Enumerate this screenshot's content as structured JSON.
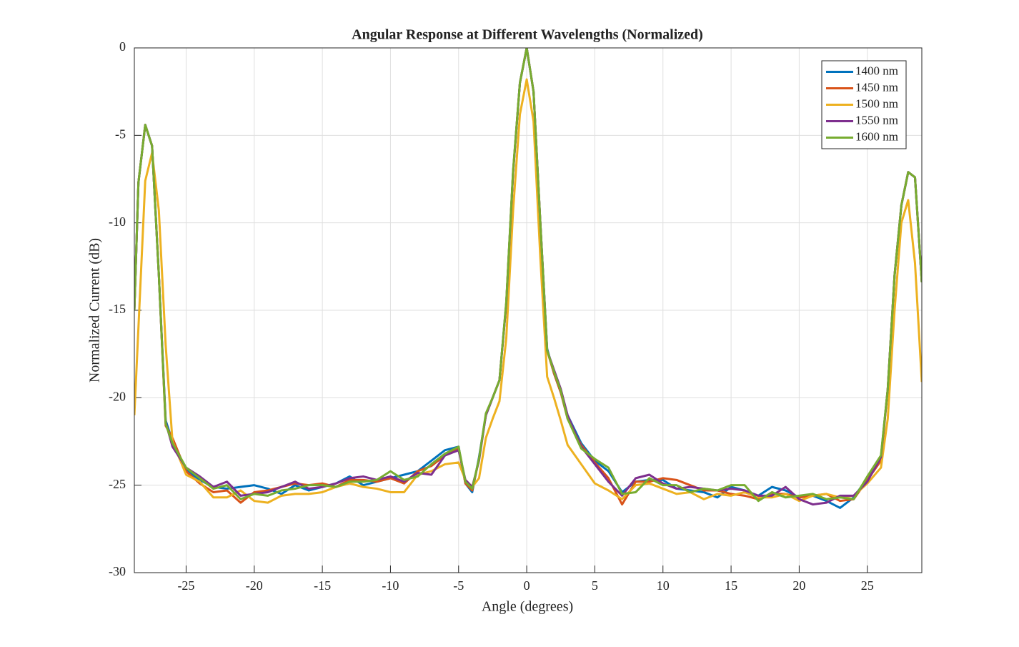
{
  "chart_data": {
    "type": "line",
    "title": "Angular Response at Different Wavelengths (Normalized)",
    "xlabel": "Angle (degrees)",
    "ylabel": "Normalized Current (dB)",
    "x": [
      -28.8,
      -28.5,
      -28,
      -27.5,
      -27,
      -26.5,
      -26,
      -25,
      -24,
      -23,
      -22,
      -21,
      -20,
      -19,
      -18,
      -17,
      -16,
      -15,
      -14,
      -13,
      -12,
      -11,
      -10,
      -9,
      -8,
      -7,
      -6,
      -5,
      -4.5,
      -4,
      -3.5,
      -3,
      -2.5,
      -2,
      -1.5,
      -1,
      -0.5,
      0,
      0.5,
      1,
      1.5,
      2,
      2.5,
      3,
      4,
      5,
      6,
      7,
      8,
      9,
      10,
      11,
      12,
      13,
      14,
      15,
      16,
      17,
      18,
      19,
      20,
      21,
      22,
      23,
      24,
      25,
      26,
      26.5,
      27,
      27.5,
      28,
      28.5,
      29
    ],
    "series": [
      {
        "name": "1400 nm",
        "color": "#0072BD",
        "values": [
          -15,
          -7.7,
          -4.4,
          -5.6,
          -13,
          -21.3,
          -22.5,
          -24.1,
          -24.7,
          -25.1,
          -25.2,
          -25.1,
          -25,
          -25.2,
          -25.5,
          -25,
          -25.3,
          -25.1,
          -24.9,
          -24.5,
          -25,
          -24.8,
          -24.6,
          -24.4,
          -24.2,
          -23.6,
          -23,
          -22.8,
          -24.9,
          -25.4,
          -23.4,
          -21,
          -20,
          -19,
          -14.6,
          -7.1,
          -2,
          0,
          -2.5,
          -10,
          -17.2,
          -18.6,
          -19.7,
          -21,
          -22.6,
          -23.6,
          -24.2,
          -25.4,
          -24.8,
          -24.7,
          -24.7,
          -25.2,
          -25.3,
          -25.4,
          -25.7,
          -25.1,
          -25.3,
          -25.6,
          -25.1,
          -25.3,
          -25.7,
          -25.6,
          -25.9,
          -26.3,
          -25.7,
          -24.6,
          -23.4,
          -19.5,
          -13,
          -9,
          -7.1,
          -7.4,
          -13.4
        ]
      },
      {
        "name": "1450 nm",
        "color": "#D95319",
        "values": [
          -15,
          -7.7,
          -4.4,
          -5.6,
          -13,
          -21.6,
          -22.3,
          -24.2,
          -24.9,
          -25.4,
          -25.3,
          -26,
          -25.4,
          -25.3,
          -25.1,
          -24.9,
          -25,
          -24.9,
          -25.1,
          -24.7,
          -24.7,
          -24.8,
          -24.6,
          -24.9,
          -24.2,
          -23.9,
          -23.3,
          -22.9,
          -24.9,
          -25.3,
          -23.5,
          -21,
          -20,
          -19,
          -14.6,
          -7.1,
          -2,
          0,
          -2.5,
          -10,
          -17.3,
          -18.6,
          -19.7,
          -21.2,
          -22.7,
          -23.7,
          -24.6,
          -26.1,
          -24.8,
          -24.8,
          -24.6,
          -24.7,
          -25,
          -25.3,
          -25.3,
          -25.5,
          -25.6,
          -25.8,
          -25.5,
          -25.5,
          -25.7,
          -25.6,
          -25.5,
          -25.9,
          -25.8,
          -24.7,
          -23.6,
          -19.5,
          -13,
          -9,
          -7.1,
          -7.4,
          -13.4
        ]
      },
      {
        "name": "1500 nm",
        "color": "#EDB120",
        "values": [
          -21,
          -16,
          -7.6,
          -6,
          -9.3,
          -17,
          -22.5,
          -24.4,
          -24.8,
          -25.7,
          -25.7,
          -25.3,
          -25.9,
          -26,
          -25.6,
          -25.5,
          -25.5,
          -25.4,
          -25.1,
          -24.9,
          -25.1,
          -25.2,
          -25.4,
          -25.4,
          -24.4,
          -24.2,
          -23.8,
          -23.7,
          -24.7,
          -25.1,
          -24.6,
          -22.3,
          -21.2,
          -20.2,
          -16.6,
          -9.3,
          -3.8,
          -1.8,
          -4.2,
          -12,
          -18.8,
          -20,
          -21.3,
          -22.7,
          -23.8,
          -24.9,
          -25.3,
          -25.8,
          -25,
          -24.9,
          -25.2,
          -25.5,
          -25.4,
          -25.8,
          -25.5,
          -25.6,
          -25.4,
          -25.7,
          -25.7,
          -25.5,
          -25.9,
          -25.6,
          -25.5,
          -25.7,
          -25.6,
          -24.9,
          -24,
          -21.2,
          -15,
          -10,
          -8.7,
          -12.3,
          -19.1
        ]
      },
      {
        "name": "1550 nm",
        "color": "#7E2F8E",
        "values": [
          -15,
          -7.7,
          -4.4,
          -5.6,
          -13,
          -21.4,
          -22.8,
          -24,
          -24.5,
          -25.1,
          -24.8,
          -25.6,
          -25.5,
          -25.4,
          -25.1,
          -24.8,
          -25.2,
          -25.1,
          -24.9,
          -24.6,
          -24.5,
          -24.7,
          -24.5,
          -24.8,
          -24.3,
          -24.4,
          -23.3,
          -23,
          -24.7,
          -25.1,
          -23.6,
          -21,
          -20,
          -19,
          -14.6,
          -7.1,
          -2,
          0,
          -2.5,
          -10,
          -17.3,
          -18.4,
          -19.5,
          -21,
          -22.8,
          -23.8,
          -24.8,
          -25.6,
          -24.6,
          -24.4,
          -24.9,
          -25.2,
          -25.1,
          -25.2,
          -25.3,
          -25.2,
          -25.3,
          -25.6,
          -25.6,
          -25.1,
          -25.8,
          -26.1,
          -26,
          -25.6,
          -25.6,
          -24.8,
          -23.4,
          -19.5,
          -13,
          -9,
          -7.1,
          -7.4,
          -13.4
        ]
      },
      {
        "name": "1600 nm",
        "color": "#77AC30",
        "values": [
          -15,
          -7.7,
          -4.4,
          -5.6,
          -13,
          -21.5,
          -22.6,
          -24,
          -24.6,
          -25.2,
          -25,
          -25.8,
          -25.5,
          -25.6,
          -25.3,
          -25.2,
          -25,
          -25,
          -25.1,
          -24.8,
          -24.8,
          -24.7,
          -24.2,
          -24.7,
          -24.5,
          -23.8,
          -23.2,
          -22.8,
          -24.8,
          -25.2,
          -23.5,
          -20.9,
          -20,
          -19,
          -14.5,
          -7,
          -2,
          0,
          -2.5,
          -10,
          -17.3,
          -18.5,
          -19.6,
          -21.2,
          -22.9,
          -23.5,
          -24,
          -25.5,
          -25.4,
          -24.6,
          -25,
          -25,
          -25.4,
          -25.2,
          -25.3,
          -25,
          -25,
          -25.9,
          -25.4,
          -25.7,
          -25.6,
          -25.5,
          -25.8,
          -25.7,
          -25.8,
          -24.5,
          -23.3,
          -19.5,
          -13,
          -9,
          -7.1,
          -7.4,
          -13.4
        ]
      }
    ],
    "xlim": [
      -28.8,
      29
    ],
    "xticks": [
      -25,
      -20,
      -15,
      -10,
      -5,
      0,
      5,
      10,
      15,
      20,
      25
    ],
    "ylim": [
      -30,
      0
    ],
    "yticks": [
      -30,
      -25,
      -20,
      -15,
      -10,
      -5,
      0
    ],
    "grid": true,
    "legend": "northeast"
  }
}
